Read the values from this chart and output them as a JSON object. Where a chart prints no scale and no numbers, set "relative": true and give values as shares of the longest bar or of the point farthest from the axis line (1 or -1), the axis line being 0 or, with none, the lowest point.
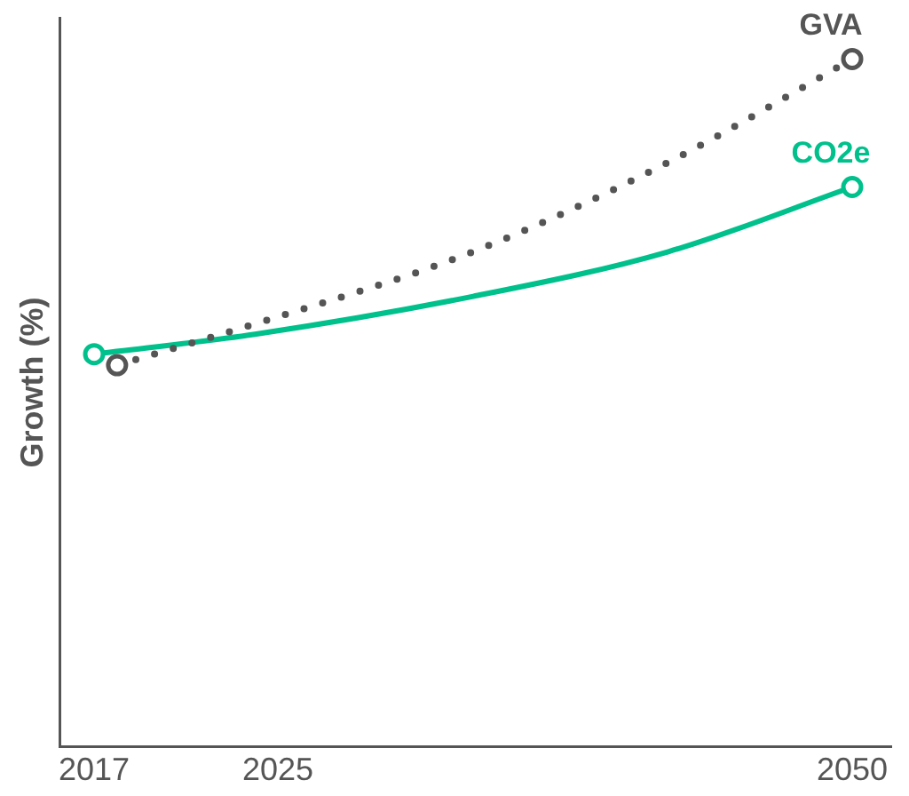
{
  "chart_data": {
    "type": "line",
    "ylabel": "Growth (%)",
    "relative": true,
    "xlim": [
      2015.5,
      2051.7
    ],
    "xticks": [
      2017,
      2025,
      2050
    ],
    "grid": false,
    "legend": false,
    "series": [
      {
        "name": "GVA",
        "color": "#555555",
        "line_style": "dotted",
        "x": [
          2018,
          2024,
          2033.5,
          2042,
          2050
        ],
        "values": [
          0.555,
          0.615,
          0.72,
          0.85,
          1
        ]
      },
      {
        "name": "CO2e",
        "color": "#00c08b",
        "line_style": "solid",
        "x": [
          2017,
          2024,
          2033.5,
          2042,
          2050
        ],
        "values": [
          0.571,
          0.6,
          0.655,
          0.72,
          0.814
        ]
      },
      {
        "type": "scatter",
        "marker": "circle",
        "color": "#555555",
        "x": [
          2018,
          2050
        ],
        "values": [
          0.555,
          1
        ]
      },
      {
        "type": "scatter",
        "marker": "circle",
        "color": "#00c08b",
        "x": [
          2017,
          2050
        ],
        "values": [
          0.571,
          0.814
        ]
      }
    ]
  }
}
